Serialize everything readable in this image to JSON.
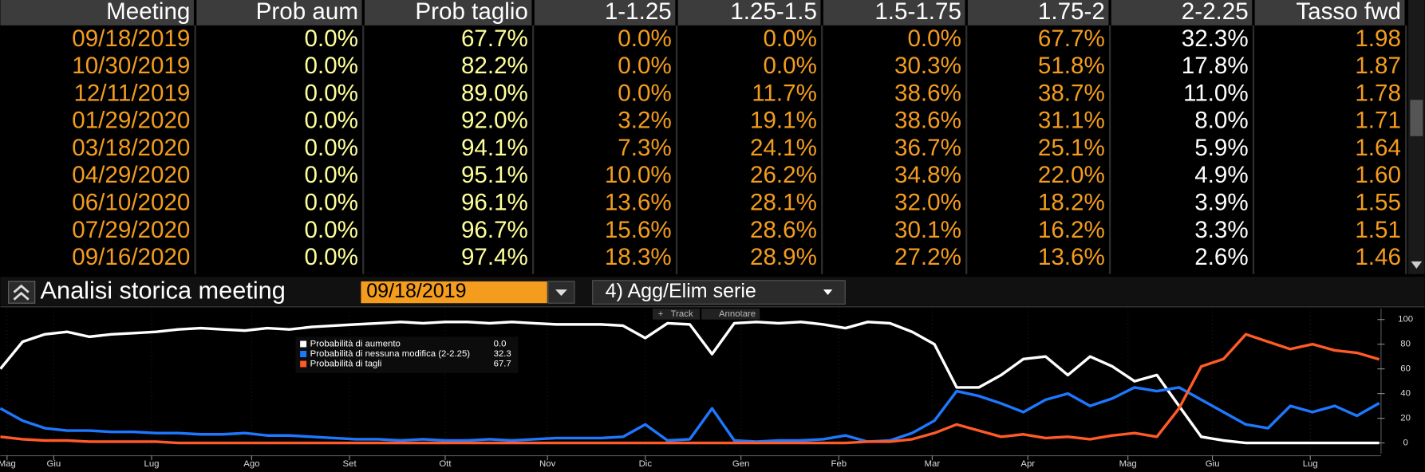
{
  "table": {
    "columns": [
      "Meeting",
      "Prob aum",
      "Prob taglio",
      "1-1.25",
      "1.25-1.5",
      "1.5-1.75",
      "1.75-2",
      "2-2.25",
      "Tasso fwd"
    ],
    "rows": [
      [
        "09/18/2019",
        "0.0%",
        "67.7%",
        "0.0%",
        "0.0%",
        "0.0%",
        "67.7%",
        "32.3%",
        "1.98"
      ],
      [
        "10/30/2019",
        "0.0%",
        "82.2%",
        "0.0%",
        "0.0%",
        "30.3%",
        "51.8%",
        "17.8%",
        "1.87"
      ],
      [
        "12/11/2019",
        "0.0%",
        "89.0%",
        "0.0%",
        "11.7%",
        "38.6%",
        "38.7%",
        "11.0%",
        "1.78"
      ],
      [
        "01/29/2020",
        "0.0%",
        "92.0%",
        "3.2%",
        "19.1%",
        "38.6%",
        "31.1%",
        "8.0%",
        "1.71"
      ],
      [
        "03/18/2020",
        "0.0%",
        "94.1%",
        "7.3%",
        "24.1%",
        "36.7%",
        "25.1%",
        "5.9%",
        "1.64"
      ],
      [
        "04/29/2020",
        "0.0%",
        "95.1%",
        "10.0%",
        "26.2%",
        "34.8%",
        "22.0%",
        "4.9%",
        "1.60"
      ],
      [
        "06/10/2020",
        "0.0%",
        "96.1%",
        "13.6%",
        "28.1%",
        "32.0%",
        "18.2%",
        "3.9%",
        "1.55"
      ],
      [
        "07/29/2020",
        "0.0%",
        "96.7%",
        "15.6%",
        "28.6%",
        "30.1%",
        "16.2%",
        "3.3%",
        "1.51"
      ],
      [
        "09/16/2020",
        "0.0%",
        "97.4%",
        "18.3%",
        "28.9%",
        "27.2%",
        "13.6%",
        "2.6%",
        "1.46"
      ]
    ]
  },
  "toolbar": {
    "title": "Analisi storica meeting",
    "meeting_date": "09/18/2019",
    "series_button": "4) Agg/Elim serie",
    "track": "Track",
    "annotate": "Annotare"
  },
  "chart_data": {
    "type": "line",
    "x": [
      0,
      1,
      2,
      3,
      4,
      5,
      6,
      7,
      8,
      9,
      10,
      11,
      12,
      13,
      14,
      15,
      16,
      17,
      18,
      19,
      20,
      21,
      22,
      23,
      24,
      25,
      26,
      27,
      28,
      29,
      30,
      31,
      32,
      33,
      34,
      35,
      36,
      37,
      38,
      39,
      40,
      41,
      42,
      43,
      44,
      45,
      46,
      47,
      48,
      49,
      50,
      51,
      52,
      53,
      54,
      55,
      56,
      57,
      58,
      59,
      60,
      61,
      62
    ],
    "xlim": [
      0,
      62
    ],
    "xticks": [
      {
        "value": 0.3,
        "label": "Mag"
      },
      {
        "value": 2.4,
        "label": "Giu"
      },
      {
        "value": 6.8,
        "label": "Lug"
      },
      {
        "value": 11.3,
        "label": "Ago"
      },
      {
        "value": 15.7,
        "label": "Set"
      },
      {
        "value": 20,
        "label": "Ott"
      },
      {
        "value": 24.6,
        "label": "Nov"
      },
      {
        "value": 29,
        "label": "Dic"
      },
      {
        "value": 33.3,
        "label": "Gen"
      },
      {
        "value": 37.7,
        "label": "Feb"
      },
      {
        "value": 41.9,
        "label": "Mar"
      },
      {
        "value": 46.2,
        "label": "Apr"
      },
      {
        "value": 50.7,
        "label": "Mag"
      },
      {
        "value": 54.5,
        "label": "Giu"
      },
      {
        "value": 58.9,
        "label": "Lug"
      }
    ],
    "ylim": [
      0,
      100
    ],
    "yticks": [
      0,
      20,
      40,
      60,
      80,
      100
    ],
    "series": [
      {
        "name": "Probabilità di aumento",
        "color": "#ffffff",
        "legend_value": "0.0",
        "values": [
          60,
          82,
          88,
          90,
          86,
          88,
          89,
          90,
          92,
          93,
          92,
          91,
          93,
          92,
          94,
          95,
          96,
          97,
          98,
          97,
          98,
          98,
          97,
          98,
          97,
          96,
          96,
          96,
          95,
          85,
          97,
          96,
          72,
          97,
          98,
          97,
          98,
          96,
          93,
          98,
          97,
          90,
          80,
          45,
          45,
          55,
          68,
          70,
          55,
          70,
          62,
          50,
          55,
          30,
          5,
          2,
          0,
          0,
          0,
          0,
          0,
          0,
          0
        ]
      },
      {
        "name": "Probabilità di nessuna modifica (2-2.25)",
        "color": "#1e78ff",
        "legend_value": "32.3",
        "values": [
          28,
          18,
          12,
          10,
          10,
          9,
          9,
          8,
          8,
          7,
          7,
          8,
          6,
          6,
          5,
          4,
          3,
          3,
          2,
          3,
          2,
          2,
          3,
          2,
          3,
          4,
          4,
          4,
          5,
          15,
          2,
          3,
          28,
          2,
          1,
          2,
          2,
          3,
          6,
          1,
          2,
          8,
          18,
          42,
          38,
          32,
          25,
          35,
          40,
          30,
          36,
          45,
          42,
          45,
          35,
          25,
          15,
          12,
          30,
          25,
          30,
          22,
          32.3
        ]
      },
      {
        "name": "Probabilità di tagli",
        "color": "#ff5a28",
        "legend_value": "67.7",
        "values": [
          5,
          3,
          2,
          2,
          1,
          1,
          1,
          1,
          0,
          0,
          0,
          0,
          0,
          0,
          0,
          0,
          0,
          0,
          0,
          0,
          0,
          0,
          0,
          0,
          0,
          0,
          0,
          0,
          0,
          0,
          0,
          0,
          0,
          0,
          0,
          0,
          0,
          0,
          0,
          1,
          1,
          3,
          8,
          15,
          10,
          5,
          7,
          4,
          5,
          3,
          6,
          8,
          5,
          28,
          62,
          68,
          88,
          82,
          76,
          80,
          75,
          73,
          67.7
        ]
      }
    ]
  }
}
